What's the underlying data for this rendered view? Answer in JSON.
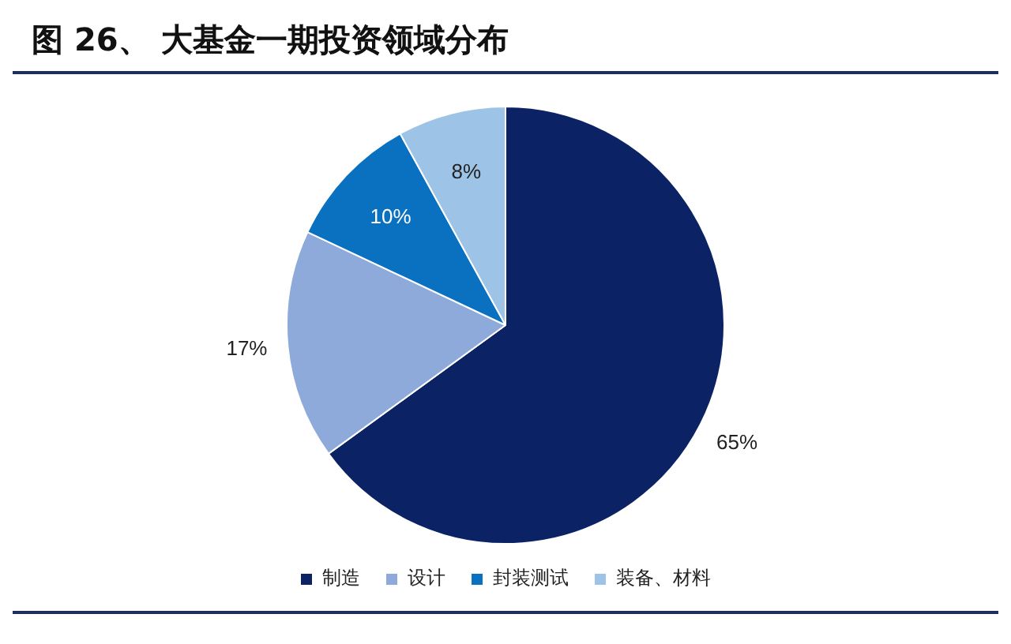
{
  "chart_data": {
    "type": "pie",
    "title": "图 26、 大基金一期投资领域分布",
    "categories": [
      "制造",
      "设计",
      "封装测试",
      "装备、材料"
    ],
    "values": [
      65,
      17,
      10,
      8
    ],
    "colors": [
      "#0b2265",
      "#8eaadb",
      "#0a70c0",
      "#9dc3e6"
    ],
    "value_labels": [
      "65%",
      "17%",
      "10%",
      "8%"
    ],
    "legend": "bottom"
  }
}
